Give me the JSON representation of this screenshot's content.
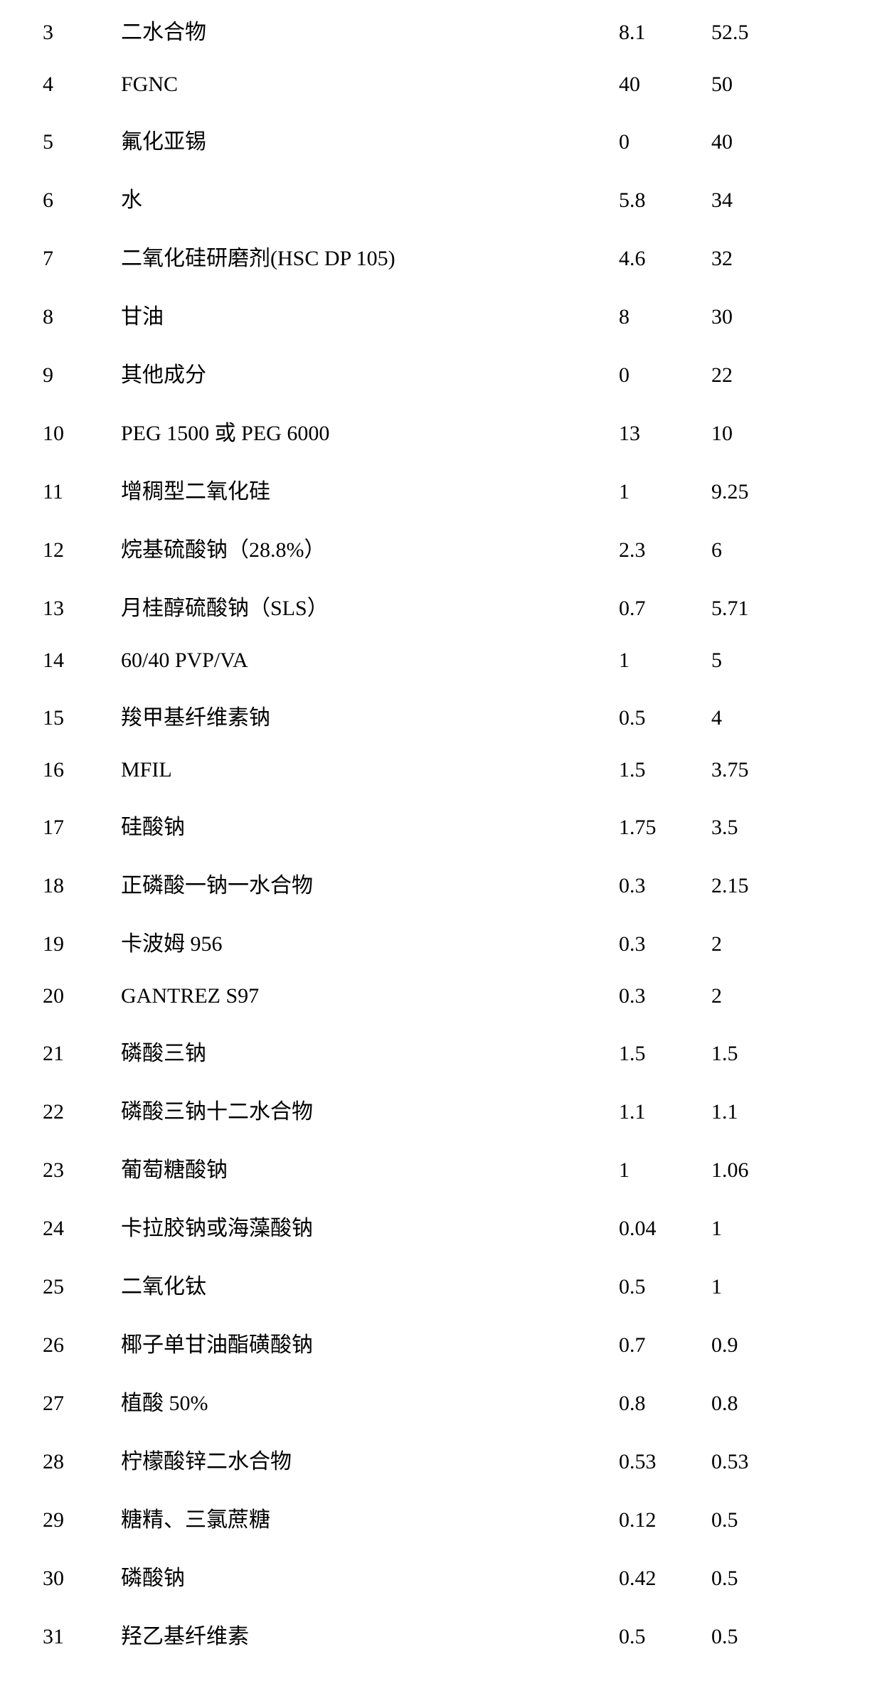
{
  "table": {
    "text_color": "#000000",
    "background_color": "#ffffff",
    "font_size": 30,
    "index_font_family": "Times New Roman",
    "ingredient_font_family": "SimSun",
    "value_font_family": "Times New Roman",
    "columns": {
      "index_width": 110,
      "ingredient_width": 700,
      "val1_width": 130,
      "val2_width": 130
    },
    "row_spacing": 38,
    "rows": [
      {
        "index": "3",
        "ingredient": "二水合物",
        "val1": "8.1",
        "val2": "52.5"
      },
      {
        "index": "4",
        "ingredient": "FGNC",
        "val1": "40",
        "val2": "50"
      },
      {
        "index": "5",
        "ingredient": "氟化亚锡",
        "val1": "0",
        "val2": "40"
      },
      {
        "index": "6",
        "ingredient": "水",
        "val1": "5.8",
        "val2": "34"
      },
      {
        "index": "7",
        "ingredient": "二氧化硅研磨剂(HSC DP 105)",
        "val1": "4.6",
        "val2": "32"
      },
      {
        "index": "8",
        "ingredient": "甘油",
        "val1": "8",
        "val2": "30"
      },
      {
        "index": "9",
        "ingredient": "其他成分",
        "val1": "0",
        "val2": "22"
      },
      {
        "index": "10",
        "ingredient": "PEG 1500 或 PEG 6000",
        "val1": "13",
        "val2": "10"
      },
      {
        "index": "11",
        "ingredient": "增稠型二氧化硅",
        "val1": "1",
        "val2": "9.25"
      },
      {
        "index": "12",
        "ingredient": "烷基硫酸钠（28.8%）",
        "val1": "2.3",
        "val2": "6"
      },
      {
        "index": "13",
        "ingredient": "月桂醇硫酸钠（SLS）",
        "val1": "0.7",
        "val2": "5.71"
      },
      {
        "index": "14",
        "ingredient": "60/40 PVP/VA",
        "val1": "1",
        "val2": "5"
      },
      {
        "index": "15",
        "ingredient": "羧甲基纤维素钠",
        "val1": "0.5",
        "val2": "4"
      },
      {
        "index": "16",
        "ingredient": "MFIL",
        "val1": "1.5",
        "val2": "3.75"
      },
      {
        "index": "17",
        "ingredient": "硅酸钠",
        "val1": "1.75",
        "val2": "3.5"
      },
      {
        "index": "18",
        "ingredient": "正磷酸一钠一水合物",
        "val1": "0.3",
        "val2": "2.15"
      },
      {
        "index": "19",
        "ingredient": "卡波姆 956",
        "val1": "0.3",
        "val2": "2"
      },
      {
        "index": "20",
        "ingredient": "GANTREZ S97",
        "val1": "0.3",
        "val2": "2"
      },
      {
        "index": "21",
        "ingredient": "磷酸三钠",
        "val1": "1.5",
        "val2": "1.5"
      },
      {
        "index": "22",
        "ingredient": "磷酸三钠十二水合物",
        "val1": "1.1",
        "val2": "1.1"
      },
      {
        "index": "23",
        "ingredient": "葡萄糖酸钠",
        "val1": "1",
        "val2": "1.06"
      },
      {
        "index": "24",
        "ingredient": "卡拉胶钠或海藻酸钠",
        "val1": "0.04",
        "val2": "1"
      },
      {
        "index": "25",
        "ingredient": "二氧化钛",
        "val1": "0.5",
        "val2": "1"
      },
      {
        "index": "26",
        "ingredient": "椰子单甘油酯磺酸钠",
        "val1": "0.7",
        "val2": "0.9"
      },
      {
        "index": "27",
        "ingredient": "植酸 50%",
        "val1": "0.8",
        "val2": "0.8"
      },
      {
        "index": "28",
        "ingredient": "柠檬酸锌二水合物",
        "val1": "0.53",
        "val2": "0.53"
      },
      {
        "index": "29",
        "ingredient": "糖精、三氯蔗糖",
        "val1": "0.12",
        "val2": "0.5"
      },
      {
        "index": "30",
        "ingredient": "磷酸钠",
        "val1": "0.42",
        "val2": "0.5"
      },
      {
        "index": "31",
        "ingredient": "羟乙基纤维素",
        "val1": "0.5",
        "val2": "0.5"
      }
    ]
  }
}
